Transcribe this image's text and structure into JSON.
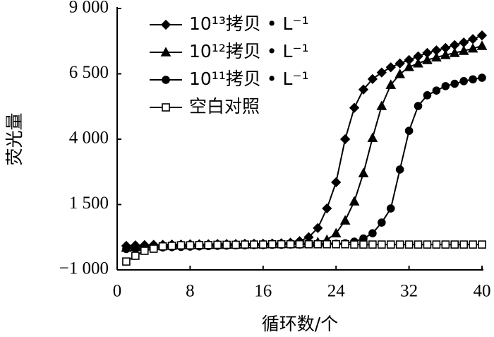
{
  "chart_data": {
    "type": "line",
    "y_label": "荧光量",
    "x_label": "循环数/个",
    "x": [
      1,
      2,
      3,
      4,
      5,
      6,
      7,
      8,
      9,
      10,
      11,
      12,
      13,
      14,
      15,
      16,
      17,
      18,
      19,
      20,
      21,
      22,
      23,
      24,
      25,
      26,
      27,
      28,
      29,
      30,
      31,
      32,
      33,
      34,
      35,
      36,
      37,
      38,
      39,
      40
    ],
    "series": [
      {
        "name": "10¹³拷贝 • L⁻¹",
        "color": "#000000",
        "marker": "diamond",
        "filled": true,
        "values": [
          -80,
          -60,
          -50,
          -40,
          -40,
          -30,
          -30,
          -20,
          -20,
          -20,
          -10,
          -10,
          -10,
          0,
          0,
          0,
          10,
          20,
          40,
          100,
          250,
          600,
          1350,
          2350,
          4000,
          5200,
          5900,
          6300,
          6550,
          6750,
          6900,
          7030,
          7170,
          7300,
          7400,
          7490,
          7600,
          7700,
          7830,
          7970
        ]
      },
      {
        "name": "10¹²拷贝 • L⁻¹",
        "color": "#000000",
        "marker": "triangle",
        "filled": true,
        "values": [
          -150,
          -120,
          -100,
          -90,
          -80,
          -70,
          -60,
          -50,
          -50,
          -40,
          -40,
          -30,
          -30,
          -20,
          -20,
          -10,
          -10,
          0,
          0,
          10,
          30,
          60,
          150,
          400,
          890,
          1620,
          2700,
          4050,
          5270,
          6080,
          6490,
          6760,
          6900,
          7030,
          7130,
          7220,
          7300,
          7380,
          7470,
          7570
        ]
      },
      {
        "name": "10¹¹拷贝 • L⁻¹",
        "color": "#000000",
        "marker": "circle",
        "filled": true,
        "values": [
          -200,
          -180,
          -160,
          -150,
          -140,
          -130,
          -120,
          -110,
          -100,
          -90,
          -80,
          -70,
          -60,
          -60,
          -50,
          -50,
          -40,
          -40,
          -30,
          -30,
          -20,
          -20,
          -10,
          0,
          20,
          80,
          200,
          400,
          810,
          1350,
          2840,
          4320,
          5270,
          5680,
          5860,
          6030,
          6120,
          6220,
          6290,
          6350
        ]
      },
      {
        "name": "空白对照",
        "color": "#000000",
        "marker": "square",
        "filled": false,
        "values": [
          -680,
          -460,
          -270,
          -190,
          -100,
          -80,
          -60,
          -60,
          -50,
          -50,
          -40,
          -40,
          -40,
          -30,
          -30,
          -30,
          -20,
          -20,
          -20,
          -20,
          -20,
          -20,
          -20,
          -20,
          -20,
          -30,
          -30,
          -30,
          -30,
          -30,
          -30,
          -30,
          -30,
          -30,
          -30,
          -30,
          -30,
          -30,
          -30,
          -30
        ]
      }
    ],
    "xlim": [
      0,
      40
    ],
    "xticks": [
      0,
      8,
      16,
      24,
      32,
      40
    ],
    "ylim": [
      -1000,
      9000
    ],
    "yticks": [
      {
        "value": -1000,
        "label": "−1 000"
      },
      {
        "value": 1500,
        "label": "1 500"
      },
      {
        "value": 4000,
        "label": "4 000"
      },
      {
        "value": 6500,
        "label": "6 500"
      },
      {
        "value": 9000,
        "label": "9 000"
      }
    ],
    "grid": false,
    "legend": "upper left"
  }
}
